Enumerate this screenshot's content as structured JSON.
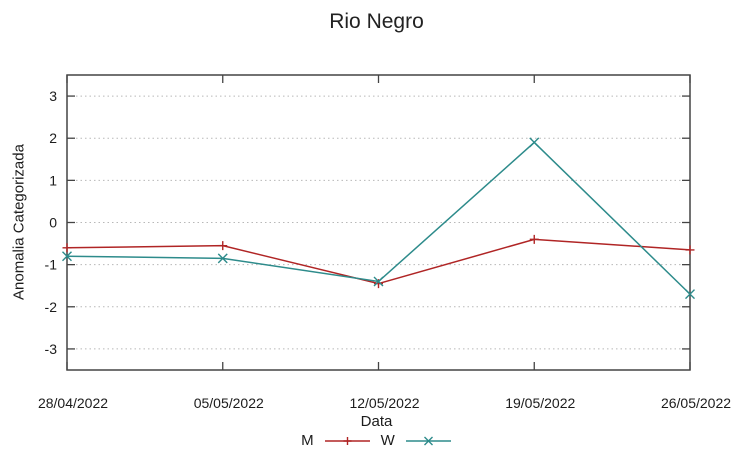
{
  "chart_data": {
    "type": "line",
    "title": "Rio Negro",
    "xlabel": "Data",
    "ylabel": "Anomalia Categorizada",
    "x": [
      "28/04/2022",
      "05/05/2022",
      "12/05/2022",
      "19/05/2022",
      "26/05/2022"
    ],
    "yticks": [
      -3,
      -2,
      -1,
      0,
      1,
      2,
      3
    ],
    "ylim": [
      -3.5,
      3.5
    ],
    "grid": "horizontal-dotted",
    "legend_position": "bottom-center",
    "series": [
      {
        "name": "M",
        "marker": "plus",
        "color": "#b02525",
        "values": [
          -0.6,
          -0.55,
          -1.45,
          -0.4,
          -0.65
        ]
      },
      {
        "name": "W",
        "marker": "cross",
        "color": "#2d8b8b",
        "values": [
          -0.8,
          -0.85,
          -1.4,
          1.9,
          -1.7
        ]
      }
    ],
    "colors": {
      "axis": "#444444",
      "grid": "#b8b8b8",
      "text": "#1c1c1c",
      "background": "#ffffff"
    }
  }
}
